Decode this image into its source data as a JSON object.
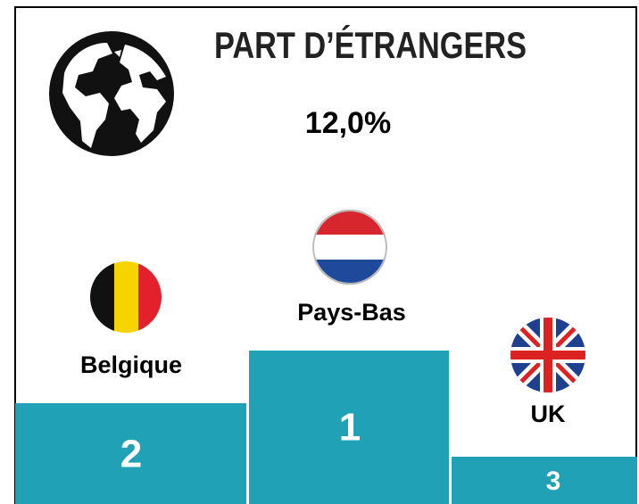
{
  "header": {
    "title": "PART D’ÉTRANGERS",
    "value": "12,0%"
  },
  "podium": [
    {
      "rank": "2",
      "country": "Belgique"
    },
    {
      "rank": "1",
      "country": "Pays-Bas"
    },
    {
      "rank": "3",
      "country": "UK"
    }
  ]
}
